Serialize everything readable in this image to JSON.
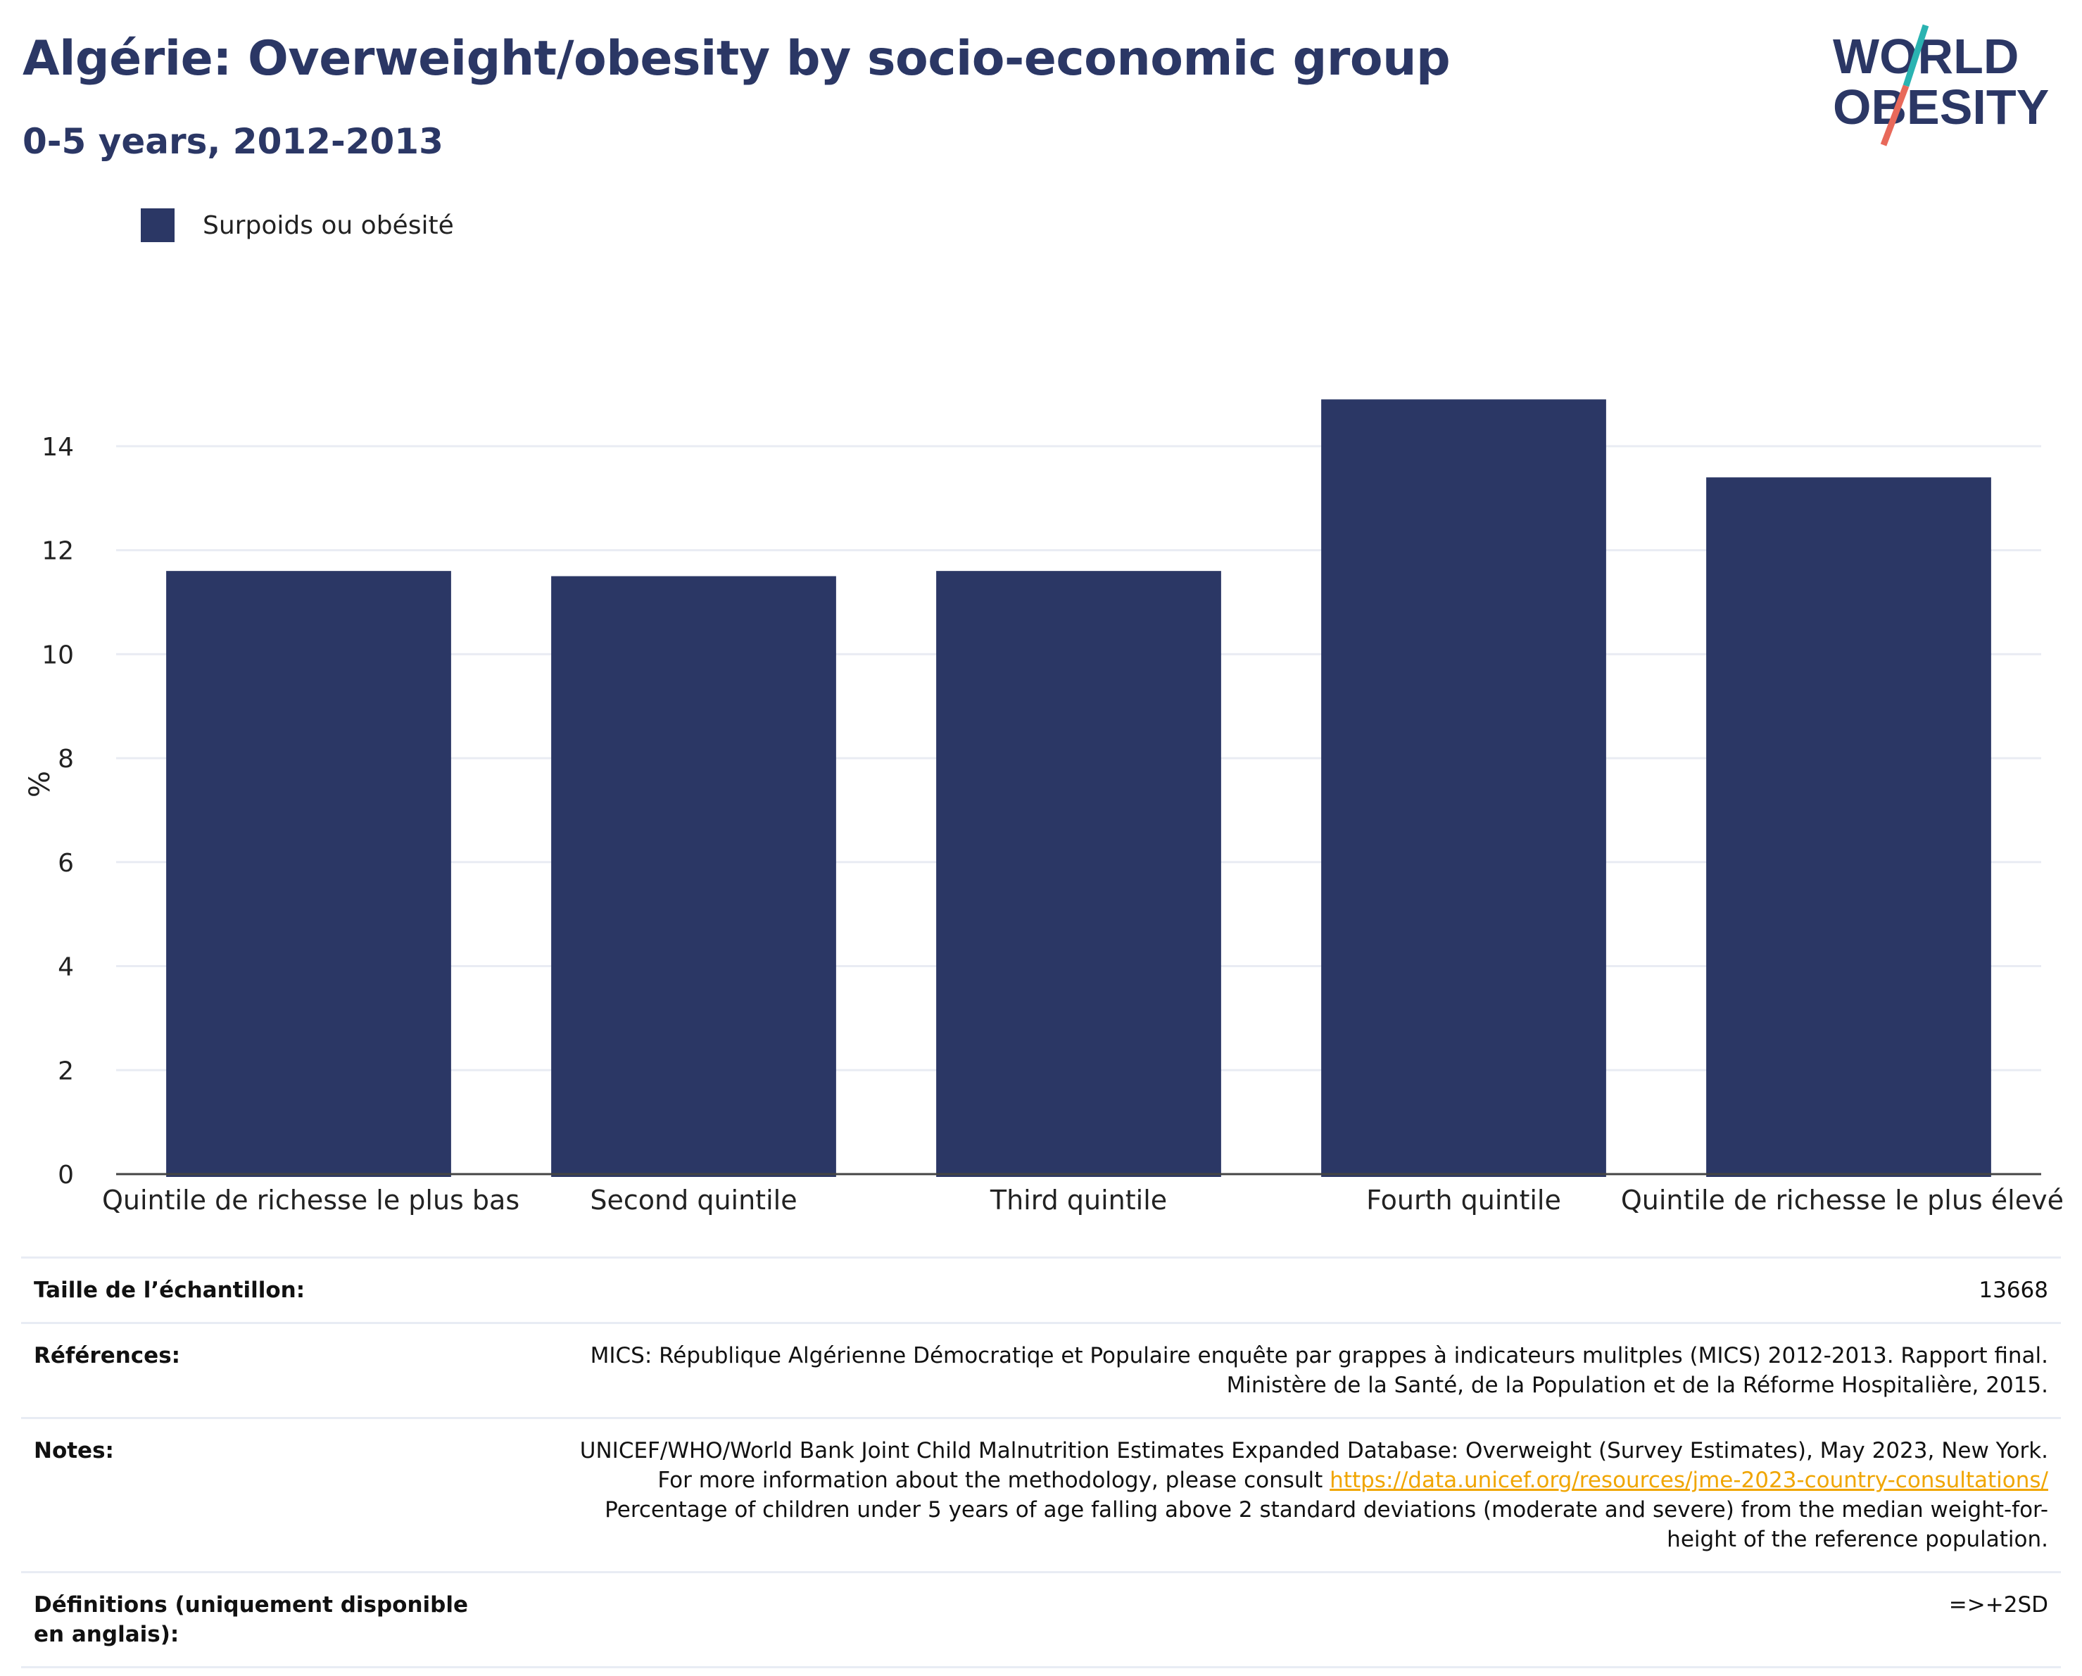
{
  "header": {
    "title": "Algérie: Overweight/obesity by socio-economic group",
    "subtitle": "0-5 years, 2012-2013"
  },
  "logo": {
    "line1": "WORLD",
    "line2": "OBESITY",
    "colors": {
      "text": "#2b3765",
      "slash_teal": "#2ab3b1",
      "slash_coral": "#e8695a"
    }
  },
  "legend": {
    "items": [
      {
        "label": "Surpoids ou obésité",
        "color": "#2b3765"
      }
    ]
  },
  "chart_data": {
    "type": "bar",
    "categories": [
      "Quintile de richesse le plus bas",
      "Second quintile",
      "Third quintile",
      "Fourth quintile",
      "Quintile de richesse le plus élevé"
    ],
    "series": [
      {
        "name": "Surpoids ou obésité",
        "values": [
          11.6,
          11.5,
          11.6,
          14.9,
          13.4
        ],
        "color": "#2b3765"
      }
    ],
    "ylabel": "%",
    "ylim": [
      0,
      15
    ],
    "yticks": [
      0,
      2,
      4,
      6,
      8,
      10,
      12,
      14
    ],
    "grid": true,
    "legend_position": "top-left"
  },
  "info": {
    "rows": [
      {
        "key": "Taille de l’échantillon:",
        "value": "13668"
      },
      {
        "key": "Références:",
        "value": "MICS: République Algérienne Démocratiqe et Populaire enquête par grappes à indicateurs mulitples (MICS) 2012-2013. Rapport final. Ministère de la Santé, de la Population et de la Réforme Hospitalière, 2015."
      },
      {
        "key": "Notes:",
        "value_pre": "UNICEF/WHO/World Bank Joint Child Malnutrition Estimates Expanded Database: Overweight (Survey Estimates), May 2023, New York. For more information about the methodology, please consult ",
        "link": "https://data.unicef.org/resources/jme-2023-country-consultations/",
        "value_post": " Percentage of children under 5 years of age falling above 2 standard deviations (moderate and severe) from the median weight-for-height of the reference population."
      },
      {
        "key": "Définitions (uniquement disponible en anglais):",
        "value": "=>+2SD"
      }
    ]
  }
}
